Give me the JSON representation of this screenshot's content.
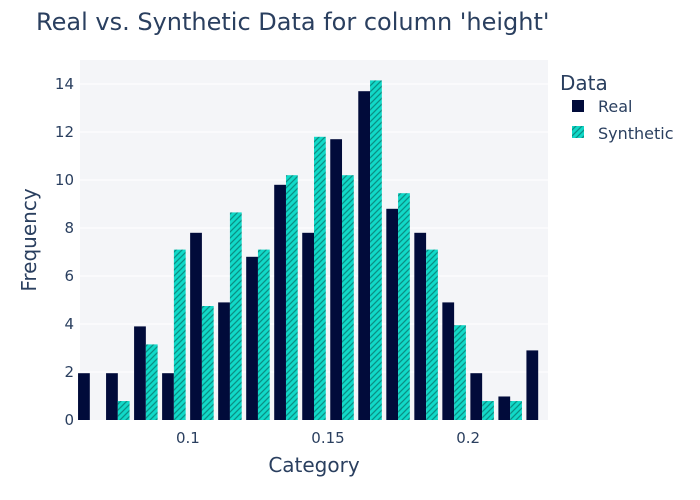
{
  "chart_data": {
    "type": "bar",
    "title": "Real vs. Synthetic Data for column 'height'",
    "xlabel": "Category",
    "ylabel": "Frequency",
    "x": [
      0.065,
      0.075,
      0.085,
      0.095,
      0.105,
      0.115,
      0.125,
      0.135,
      0.145,
      0.155,
      0.165,
      0.175,
      0.185,
      0.195,
      0.205,
      0.215,
      0.225
    ],
    "xlim": [
      0.0615,
      0.2285
    ],
    "ylim": [
      0,
      15
    ],
    "xticks": [
      0.1,
      0.15,
      0.2
    ],
    "xtick_labels": [
      "0.1",
      "0.15",
      "0.2"
    ],
    "yticks": [
      0,
      2,
      4,
      6,
      8,
      10,
      12,
      14
    ],
    "ytick_labels": [
      "0",
      "2",
      "4",
      "6",
      "8",
      "10",
      "12",
      "14"
    ],
    "grid": true,
    "legend": {
      "title": "Data",
      "position": "right"
    },
    "series": [
      {
        "name": "Real",
        "color": "#010b3a",
        "pattern": "solid",
        "values": [
          1.95,
          1.95,
          3.9,
          1.95,
          7.8,
          4.9,
          6.8,
          9.8,
          7.8,
          11.7,
          13.7,
          8.8,
          7.8,
          4.9,
          1.95,
          0.98,
          2.9
        ]
      },
      {
        "name": "Synthetic",
        "color": "#11d9c8",
        "pattern": "diagonal-hatch",
        "values": [
          0,
          0.79,
          3.15,
          7.1,
          4.75,
          8.65,
          7.1,
          10.2,
          11.8,
          10.2,
          14.15,
          9.45,
          7.1,
          3.95,
          0.79,
          0.79,
          0
        ]
      }
    ]
  }
}
